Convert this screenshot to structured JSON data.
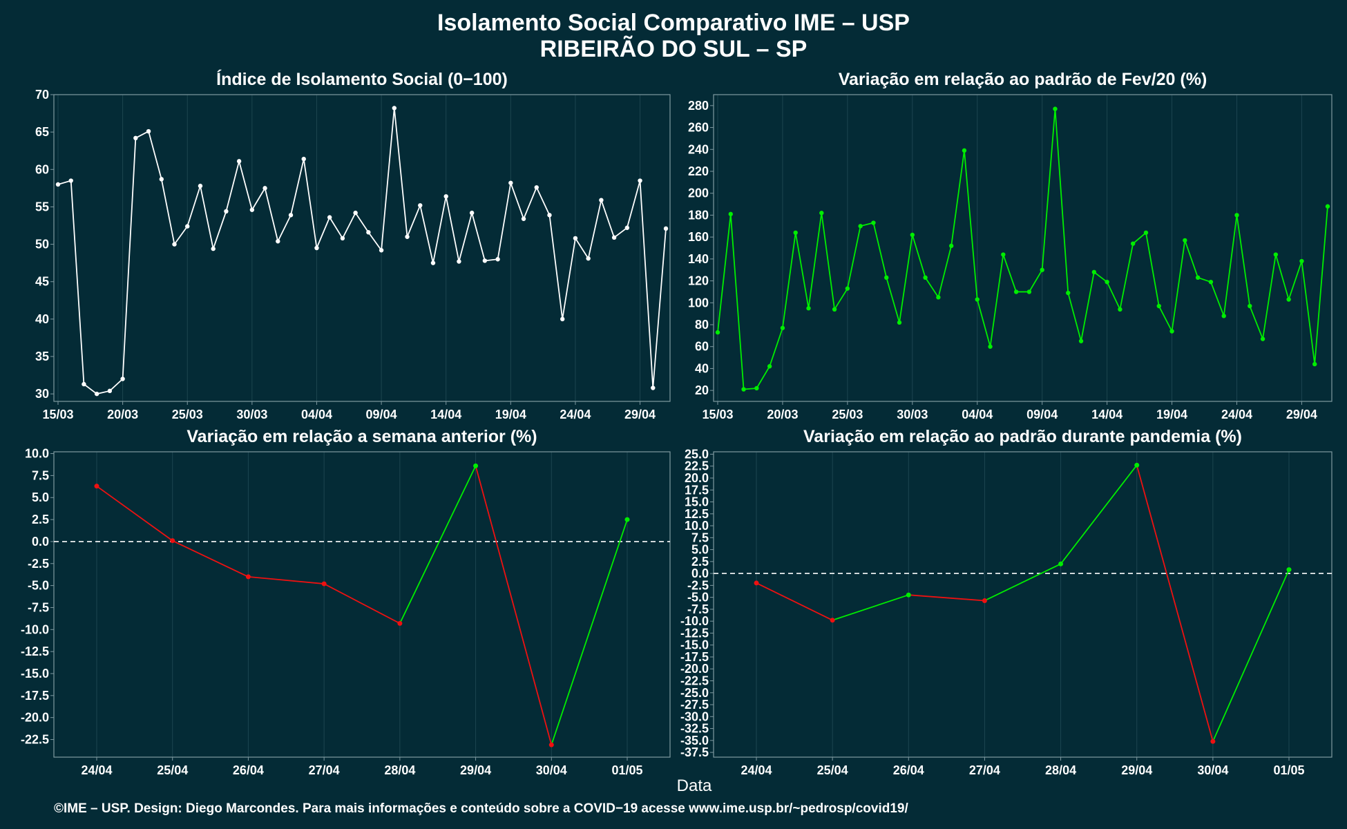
{
  "title": {
    "line1": "Isolamento Social Comparativo IME – USP",
    "line2": "RIBEIRÃO DO SUL – SP"
  },
  "xlabel": "Data",
  "footer": "©IME – USP. Design: Diego Marcondes. Para mais informações e conteúdo sobre a COVID−19 acesse www.ime.usp.br/~pedrosp/covid19/",
  "colors": {
    "background": "#042b36",
    "grid": "#1d4550",
    "frame": "#7f9aa1",
    "white_series": "#ffffff",
    "green": "#00ee00",
    "red": "#ee1111",
    "zero_line": "#ffffff"
  },
  "chart_data": [
    {
      "type": "line",
      "title": "Índice de Isolamento Social (0−100)",
      "x": [
        "15/03",
        "16/03",
        "17/03",
        "18/03",
        "19/03",
        "20/03",
        "21/03",
        "22/03",
        "23/03",
        "24/03",
        "25/03",
        "26/03",
        "27/03",
        "28/03",
        "29/03",
        "30/03",
        "31/03",
        "01/04",
        "02/04",
        "03/04",
        "04/04",
        "05/04",
        "06/04",
        "07/04",
        "08/04",
        "09/04",
        "10/04",
        "11/04",
        "12/04",
        "13/04",
        "14/04",
        "15/04",
        "16/04",
        "17/04",
        "18/04",
        "19/04",
        "20/04",
        "21/04",
        "22/04",
        "23/04",
        "24/04",
        "25/04",
        "26/04",
        "27/04",
        "28/04",
        "29/04",
        "30/04",
        "01/05"
      ],
      "xticks": [
        "15/03",
        "20/03",
        "25/03",
        "30/03",
        "04/04",
        "09/04",
        "14/04",
        "19/04",
        "24/04",
        "29/04"
      ],
      "ylim": [
        29,
        70
      ],
      "yticks": [
        30,
        35,
        40,
        45,
        50,
        55,
        60,
        65,
        70
      ],
      "grid": true,
      "series": [
        {
          "color": "#ffffff",
          "values": [
            58,
            58.5,
            31.3,
            30,
            30.4,
            32,
            64.2,
            65.1,
            58.7,
            50,
            52.4,
            57.8,
            49.4,
            54.4,
            61.1,
            54.6,
            57.5,
            50.4,
            53.9,
            61.4,
            49.5,
            53.6,
            50.8,
            54.2,
            51.6,
            49.2,
            68.2,
            51,
            55.2,
            47.5,
            56.4,
            47.7,
            54.2,
            47.8,
            48,
            58.2,
            53.4,
            57.6,
            53.9,
            40,
            50.8,
            48.1,
            55.9,
            50.9,
            52.2,
            58.5,
            30.8,
            52.1
          ]
        }
      ]
    },
    {
      "type": "line",
      "title": "Variação em relação ao padrão de Fev/20 (%)",
      "x": [
        "15/03",
        "16/03",
        "17/03",
        "18/03",
        "19/03",
        "20/03",
        "21/03",
        "22/03",
        "23/03",
        "24/03",
        "25/03",
        "26/03",
        "27/03",
        "28/03",
        "29/03",
        "30/03",
        "31/03",
        "01/04",
        "02/04",
        "03/04",
        "04/04",
        "05/04",
        "06/04",
        "07/04",
        "08/04",
        "09/04",
        "10/04",
        "11/04",
        "12/04",
        "13/04",
        "14/04",
        "15/04",
        "16/04",
        "17/04",
        "18/04",
        "19/04",
        "20/04",
        "21/04",
        "22/04",
        "23/04",
        "24/04",
        "25/04",
        "26/04",
        "27/04",
        "28/04",
        "29/04",
        "30/04",
        "01/05"
      ],
      "xticks": [
        "15/03",
        "20/03",
        "25/03",
        "30/03",
        "04/04",
        "09/04",
        "14/04",
        "19/04",
        "24/04",
        "29/04"
      ],
      "ylim": [
        10,
        290
      ],
      "yticks": [
        20,
        40,
        60,
        80,
        100,
        120,
        140,
        160,
        180,
        200,
        220,
        240,
        260,
        280
      ],
      "grid": true,
      "series": [
        {
          "color": "#00ee00",
          "values": [
            73,
            181,
            21,
            22,
            42,
            77,
            164,
            95,
            182,
            94,
            113,
            170,
            173,
            123,
            82,
            162,
            123,
            105,
            152,
            239,
            103,
            60,
            144,
            110,
            110,
            130,
            277,
            109,
            65,
            128,
            119,
            94,
            154,
            164,
            97,
            74,
            157,
            123,
            119,
            88,
            180,
            97,
            67,
            144,
            103,
            138,
            44,
            188
          ]
        }
      ]
    },
    {
      "type": "line",
      "title": "Variação em relação a semana anterior (%)",
      "categories": [
        "24/04",
        "25/04",
        "26/04",
        "27/04",
        "28/04",
        "29/04",
        "30/04",
        "01/05"
      ],
      "ylim": [
        -24.5,
        10.2
      ],
      "yticks": [
        10.0,
        7.5,
        5.0,
        2.5,
        0.0,
        -2.5,
        -5.0,
        -7.5,
        -10.0,
        -12.5,
        -15.0,
        -17.5,
        -20.0,
        -22.5
      ],
      "zero_line": true,
      "grid": true,
      "series": [
        {
          "values": [
            6.3,
            0.1,
            -4,
            -4.8,
            -9.3,
            8.6,
            -23.1,
            2.5
          ]
        }
      ]
    },
    {
      "type": "line",
      "title": "Variação em relação ao padrão durante pandemia (%)",
      "categories": [
        "24/04",
        "25/04",
        "26/04",
        "27/04",
        "28/04",
        "29/04",
        "30/04",
        "01/05"
      ],
      "ylim": [
        -38.5,
        25.5
      ],
      "yticks": [
        25.0,
        22.5,
        20.0,
        17.5,
        15.0,
        12.5,
        10.0,
        7.5,
        5.0,
        2.5,
        0.0,
        -2.5,
        -5.0,
        -7.5,
        -10.0,
        -12.5,
        -15.0,
        -17.5,
        -20.0,
        -22.5,
        -25.0,
        -27.5,
        -30.0,
        -32.5,
        -35.0,
        -37.5
      ],
      "zero_line": true,
      "grid": true,
      "series": [
        {
          "values": [
            -2,
            -9.8,
            -4.5,
            -5.7,
            2,
            22.7,
            -35.2,
            0.8
          ]
        }
      ]
    }
  ]
}
